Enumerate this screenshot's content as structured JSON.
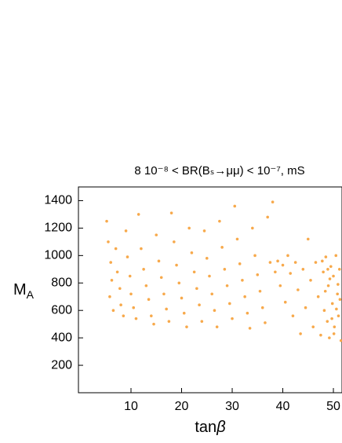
{
  "chart_data": {
    "type": "scatter",
    "title": "8 10⁻⁸ < BR(Bₛ→μμ) < 10⁻⁷, mS",
    "xlabel": {
      "main": "tan",
      "greek": "β"
    },
    "ylabel": {
      "main": "M",
      "sub": "A"
    },
    "color": "#f7a94b",
    "xlim": [
      0,
      51.7
    ],
    "ylim": [
      0,
      1500
    ],
    "xticks": [
      10,
      20,
      30,
      40,
      50
    ],
    "yticks": [
      200,
      400,
      600,
      800,
      1000,
      1200,
      1400
    ],
    "series": [
      {
        "x": [
          5.2,
          5.5,
          6,
          6.2,
          5.8,
          6.5,
          7,
          7.3,
          7.8,
          8,
          8.5,
          9,
          9.3,
          9.8,
          10,
          10.5,
          11,
          11.5,
          12,
          12.5,
          13,
          13.5,
          14,
          14.5,
          15,
          15.5,
          16,
          16.5,
          17,
          17.5,
          18,
          18.5,
          19,
          19.5,
          20,
          20.5,
          21,
          21.5,
          22,
          22.5,
          23,
          23.5,
          24,
          24.5,
          25,
          25.5,
          26,
          26.5,
          27,
          27.5,
          28,
          28.5,
          29,
          29.5,
          30,
          30.5,
          31,
          31.5,
          32,
          32.5,
          33,
          33.5,
          34,
          34.5,
          35,
          35.5,
          36,
          36.5,
          37,
          37.5,
          38,
          38.5,
          39,
          39.5,
          40,
          40.5,
          41,
          41.5,
          42,
          42.5,
          43,
          43.5,
          44,
          44.5,
          45,
          45.5,
          46,
          46.5,
          47,
          47.5,
          48,
          48.2,
          48.5,
          48.8,
          49,
          49.2,
          49.5,
          49.8,
          50,
          50.2,
          50.5,
          50.8,
          51,
          51.2,
          51.5,
          49.3,
          50.6,
          48.4,
          47.8,
          51.3,
          50.1,
          49.7,
          48.9,
          50.9
        ],
        "y": [
          1250,
          1100,
          950,
          820,
          700,
          600,
          1050,
          880,
          760,
          640,
          560,
          1180,
          990,
          850,
          720,
          620,
          540,
          1300,
          1050,
          900,
          780,
          680,
          560,
          500,
          1150,
          960,
          840,
          720,
          610,
          520,
          1310,
          1100,
          930,
          800,
          690,
          580,
          480,
          1200,
          1020,
          880,
          760,
          640,
          520,
          1180,
          980,
          850,
          720,
          600,
          480,
          1250,
          1060,
          900,
          780,
          650,
          540,
          1360,
          1120,
          940,
          820,
          700,
          580,
          470,
          1200,
          1000,
          860,
          740,
          620,
          510,
          1280,
          950,
          1390,
          880,
          960,
          780,
          930,
          660,
          1000,
          870,
          560,
          950,
          750,
          430,
          900,
          620,
          1120,
          820,
          480,
          950,
          700,
          420,
          880,
          600,
          990,
          520,
          780,
          400,
          920,
          650,
          850,
          480,
          1000,
          720,
          560,
          900,
          380,
          830,
          610,
          740,
          960,
          680,
          430,
          540,
          900,
          790
        ]
      }
    ]
  }
}
